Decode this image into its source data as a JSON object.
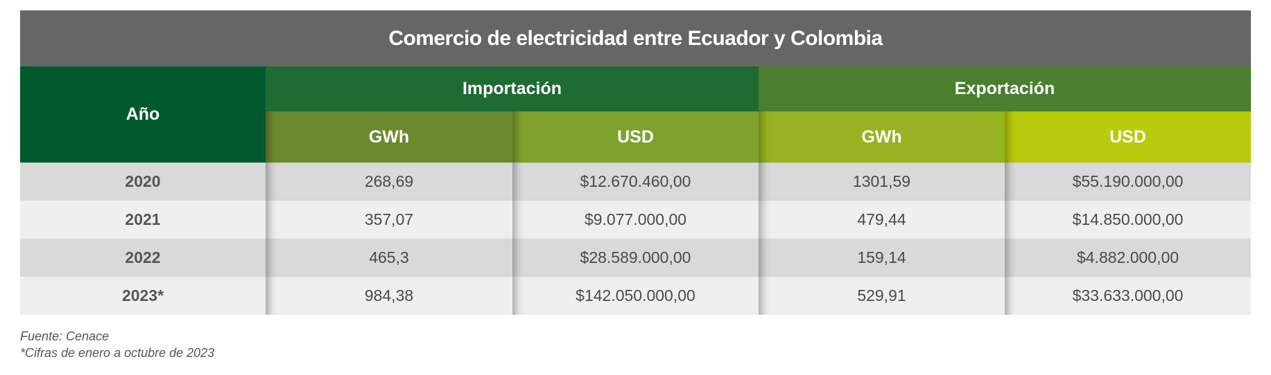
{
  "title": "Comercio de electricidad entre Ecuador y Colombia",
  "header": {
    "year": "Año",
    "groups": [
      {
        "label": "Importación",
        "columns": [
          "GWh",
          "USD"
        ]
      },
      {
        "label": "Exportación",
        "columns": [
          "GWh",
          "USD"
        ]
      }
    ]
  },
  "rows": [
    [
      "2020",
      "268,69",
      "$12.670.460,00",
      "1301,59",
      "$55.190.000,00"
    ],
    [
      "2021",
      "357,07",
      "$9.077.000,00",
      "479,44",
      "$14.850.000,00"
    ],
    [
      "2022",
      "465,3",
      "$28.589.000,00",
      "159,14",
      "$4.882.000,00"
    ],
    [
      "2023*",
      "984,38",
      "$142.050.000,00",
      "529,91",
      "$33.633.000,00"
    ]
  ],
  "notes": [
    "Fuente: Cenace",
    "*Cifras de enero a octubre de 2023"
  ]
}
